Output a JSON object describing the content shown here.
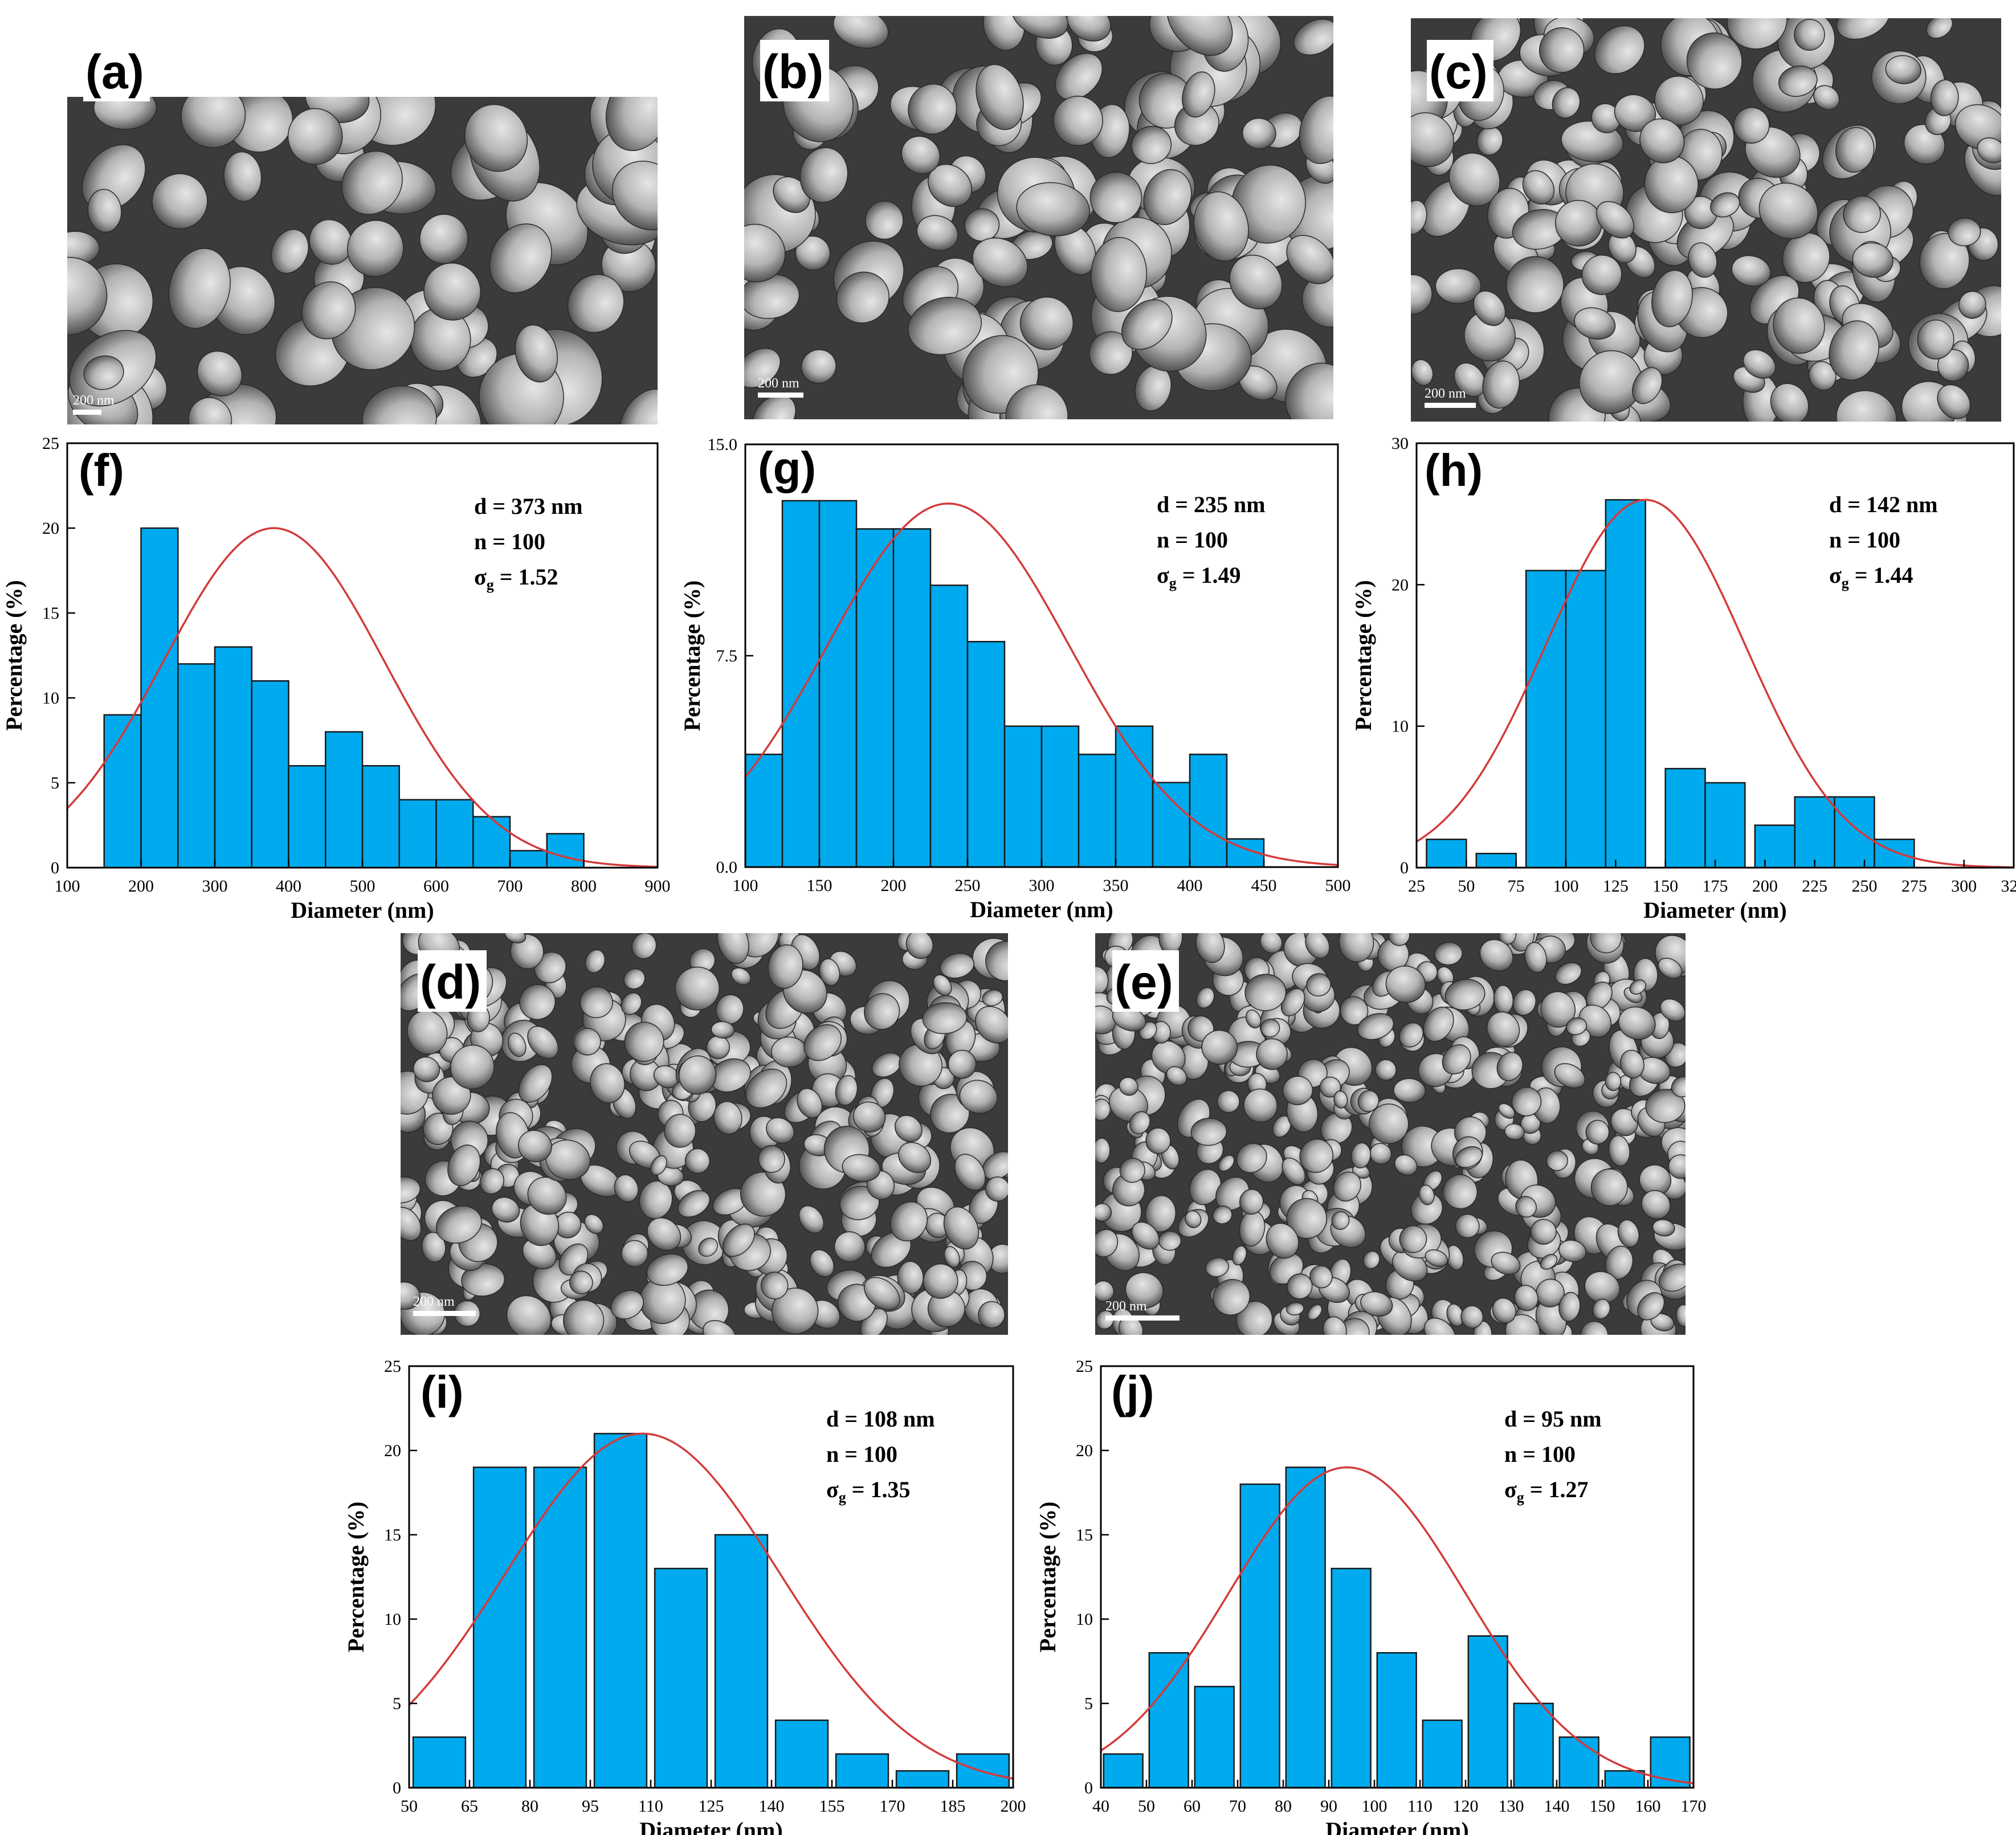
{
  "figure": {
    "sem_panels": [
      {
        "label": "(a)",
        "scale": "200 nm"
      },
      {
        "label": "(b)",
        "scale": "200 nm"
      },
      {
        "label": "(c)",
        "scale": "200 nm"
      },
      {
        "label": "(d)",
        "scale": "200 nm"
      },
      {
        "label": "(e)",
        "scale": "200 nm"
      }
    ],
    "colors": {
      "bar_fill": "#00aaee",
      "bar_stroke": "#1a1a1a",
      "fit_curve": "#d43a3a",
      "sem_bg": "#777777"
    }
  },
  "chart_data": [
    {
      "type": "bar",
      "panel_label": "(f)",
      "xlabel": "Diameter (nm)",
      "ylabel": "Percentage (%)",
      "xlim": [
        100,
        900
      ],
      "ylim": [
        0,
        25
      ],
      "xticks": [
        "100",
        "200",
        "300",
        "400",
        "500",
        "600",
        "700",
        "800",
        "900"
      ],
      "yticks": [
        "0",
        "5",
        "10",
        "15",
        "20",
        "25"
      ],
      "bin_width": 50,
      "bin_starts": [
        150,
        200,
        250,
        300,
        350,
        400,
        450,
        500,
        550,
        600,
        650,
        700,
        750
      ],
      "values": [
        9,
        20,
        12,
        13,
        11,
        6,
        8,
        6,
        4,
        4,
        3,
        1,
        2
      ],
      "fit": {
        "mean": 380,
        "sigma": 150,
        "peak": 20
      },
      "stats": {
        "d": "d = 373 nm",
        "n": "n = 100",
        "sigma_prefix": "σ",
        "sigma_sub": "g",
        "sigma_value": " = 1.52"
      }
    },
    {
      "type": "bar",
      "panel_label": "(g)",
      "xlabel": "Diameter (nm)",
      "ylabel": "Percentage (%)",
      "xlim": [
        100,
        500
      ],
      "ylim": [
        0,
        15
      ],
      "xticks": [
        "100",
        "150",
        "200",
        "250",
        "300",
        "350",
        "400",
        "450",
        "500"
      ],
      "yticks": [
        "0.0",
        "7.5",
        "15.0"
      ],
      "ytick_values": [
        0,
        7.5,
        15
      ],
      "bin_width": 25,
      "bin_starts": [
        100,
        125,
        150,
        175,
        200,
        225,
        250,
        275,
        300,
        325,
        350,
        375,
        400,
        425
      ],
      "values": [
        4,
        13,
        13,
        12,
        12,
        10,
        8,
        5,
        5,
        4,
        5,
        3,
        4,
        1
      ],
      "fit": {
        "mean": 237,
        "sigma": 82,
        "peak": 12.9
      },
      "stats": {
        "d": "d = 235 nm",
        "n": "n = 100",
        "sigma_prefix": "σ",
        "sigma_sub": "g",
        "sigma_value": " = 1.49"
      }
    },
    {
      "type": "bar",
      "panel_label": "(h)",
      "xlabel": "Diameter (nm)",
      "ylabel": "Percentage (%)",
      "xlim": [
        25,
        325
      ],
      "ylim": [
        0,
        30
      ],
      "xticks": [
        "25",
        "50",
        "75",
        "100",
        "125",
        "150",
        "175",
        "200",
        "225",
        "250",
        "275",
        "300",
        "325"
      ],
      "yticks": [
        "0",
        "10",
        "20",
        "30"
      ],
      "bin_width": 20,
      "bin_starts": [
        30,
        55,
        80,
        100,
        120,
        150,
        170,
        195,
        215,
        235,
        255,
        275
      ],
      "bin_widths": [
        20,
        20,
        20,
        20,
        20,
        20,
        20,
        20,
        20,
        20,
        20,
        20
      ],
      "values": [
        2,
        1,
        21,
        21,
        26,
        7,
        6,
        3,
        5,
        5,
        2,
        0
      ],
      "fit": {
        "mean": 140,
        "sigma": 50,
        "peak": 26
      },
      "stats": {
        "d": "d = 142 nm",
        "n": "n = 100",
        "sigma_prefix": "σ",
        "sigma_sub": "g",
        "sigma_value": " = 1.44"
      }
    },
    {
      "type": "bar",
      "panel_label": "(i)",
      "xlabel": "Diameter (nm)",
      "ylabel": "Percentage (%)",
      "xlim": [
        50,
        200
      ],
      "ylim": [
        0,
        25
      ],
      "xticks": [
        "50",
        "65",
        "80",
        "95",
        "110",
        "125",
        "140",
        "155",
        "170",
        "185",
        "200"
      ],
      "yticks": [
        "0",
        "5",
        "10",
        "15",
        "20",
        "25"
      ],
      "bin_width": 13,
      "bin_starts": [
        51,
        66,
        81,
        96,
        111,
        126,
        141,
        156,
        171,
        186
      ],
      "values": [
        3,
        19,
        19,
        21,
        13,
        15,
        4,
        2,
        1,
        2
      ],
      "fit": {
        "mean": 108,
        "sigma": 34,
        "peak": 21
      },
      "stats": {
        "d": "d = 108 nm",
        "n": "n = 100",
        "sigma_prefix": "σ",
        "sigma_sub": "g",
        "sigma_value": " = 1.35"
      }
    },
    {
      "type": "bar",
      "panel_label": "(j)",
      "xlabel": "Diameter (nm)",
      "ylabel": "Percentage (%)",
      "xlim": [
        40,
        170
      ],
      "ylim": [
        0,
        25
      ],
      "xticks": [
        "40",
        "50",
        "60",
        "70",
        "80",
        "90",
        "100",
        "110",
        "120",
        "130",
        "140",
        "150",
        "160",
        "170"
      ],
      "yticks": [
        "0",
        "5",
        "10",
        "15",
        "20",
        "25"
      ],
      "bin_width": 8.6,
      "bin_starts": [
        40.6,
        50.6,
        60.6,
        70.6,
        80.6,
        90.6,
        100.6,
        110.6,
        120.6,
        130.6,
        140.6,
        150.6,
        160.6
      ],
      "values": [
        2,
        8,
        6,
        18,
        19,
        13,
        8,
        4,
        9,
        5,
        3,
        1,
        3
      ],
      "fit": {
        "mean": 94,
        "sigma": 26,
        "peak": 19
      },
      "stats": {
        "d": "d = 95 nm",
        "n": "n = 100",
        "sigma_prefix": "σ",
        "sigma_sub": "g",
        "sigma_value": " = 1.27"
      }
    }
  ]
}
